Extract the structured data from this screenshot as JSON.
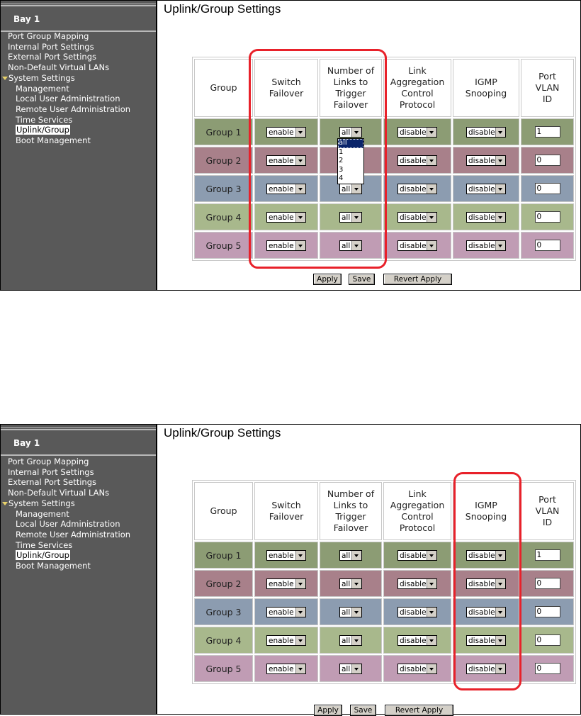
{
  "screens": [
    {
      "bay_title": "Bay 1",
      "nav": [
        {
          "label": "Port Group Mapping"
        },
        {
          "label": "Internal Port Settings"
        },
        {
          "label": "External Port Settings"
        },
        {
          "label": "Non-Default Virtual LANs"
        },
        {
          "label": "System Settings"
        },
        {
          "label": "Management"
        },
        {
          "label": "Local User Administration"
        },
        {
          "label": "Remote User Administration"
        },
        {
          "label": "Time Services"
        },
        {
          "label": "Uplink/Group"
        },
        {
          "label": "Boot Management"
        }
      ],
      "page_title": "Uplink/Group Settings",
      "headers": [
        "Group",
        "Switch Failover",
        "Number of Links to Trigger Failover",
        "Link Aggregation Control Protocol",
        "IGMP Snooping",
        "Port VLAN ID"
      ],
      "rows": [
        {
          "group": "Group 1",
          "switch_failover": "enable",
          "num_links": "all",
          "lacp": "disable",
          "igmp": "disable",
          "pvid": "1",
          "color": "#8c9c74"
        },
        {
          "group": "Group 2",
          "switch_failover": "enable",
          "num_links": "all",
          "lacp": "disable",
          "igmp": "disable",
          "pvid": "0",
          "color": "#a8808a"
        },
        {
          "group": "Group 3",
          "switch_failover": "enable",
          "num_links": "all",
          "lacp": "disable",
          "igmp": "disable",
          "pvid": "0",
          "color": "#8c9cb0"
        },
        {
          "group": "Group 4",
          "switch_failover": "enable",
          "num_links": "all",
          "lacp": "disable",
          "igmp": "disable",
          "pvid": "0",
          "color": "#a8b88c"
        },
        {
          "group": "Group 5",
          "switch_failover": "enable",
          "num_links": "all",
          "lacp": "disable",
          "igmp": "disable",
          "pvid": "0",
          "color": "#c09cb4"
        }
      ],
      "dropdown_options": [
        "all",
        "1",
        "2",
        "3",
        "4"
      ],
      "buttons": {
        "apply": "Apply",
        "save": "Save",
        "revert": "Revert Apply"
      }
    },
    {
      "bay_title": "Bay 1",
      "nav": [
        {
          "label": "Port Group Mapping"
        },
        {
          "label": "Internal Port Settings"
        },
        {
          "label": "External Port Settings"
        },
        {
          "label": "Non-Default Virtual LANs"
        },
        {
          "label": "System Settings"
        },
        {
          "label": "Management"
        },
        {
          "label": "Local User Administration"
        },
        {
          "label": "Remote User Administration"
        },
        {
          "label": "Time Services"
        },
        {
          "label": "Uplink/Group"
        },
        {
          "label": "Boot Management"
        }
      ],
      "page_title": "Uplink/Group Settings",
      "headers": [
        "Group",
        "Switch Failover",
        "Number of Links to Trigger Failover",
        "Link Aggregation Control Protocol",
        "IGMP Snooping",
        "Port VLAN ID"
      ],
      "rows": [
        {
          "group": "Group 1",
          "switch_failover": "enable",
          "num_links": "all",
          "lacp": "disable",
          "igmp": "disable",
          "pvid": "1",
          "color": "#8c9c74"
        },
        {
          "group": "Group 2",
          "switch_failover": "enable",
          "num_links": "all",
          "lacp": "disable",
          "igmp": "disable",
          "pvid": "0",
          "color": "#a8808a"
        },
        {
          "group": "Group 3",
          "switch_failover": "enable",
          "num_links": "all",
          "lacp": "disable",
          "igmp": "disable",
          "pvid": "0",
          "color": "#8c9cb0"
        },
        {
          "group": "Group 4",
          "switch_failover": "enable",
          "num_links": "all",
          "lacp": "disable",
          "igmp": "disable",
          "pvid": "0",
          "color": "#a8b88c"
        },
        {
          "group": "Group 5",
          "switch_failover": "enable",
          "num_links": "all",
          "lacp": "disable",
          "igmp": "disable",
          "pvid": "0",
          "color": "#c09cb4"
        }
      ],
      "buttons": {
        "apply": "Apply",
        "save": "Save",
        "revert": "Revert Apply"
      }
    }
  ],
  "colors": {
    "sidebar": "#595959",
    "highlight": "#e8212a",
    "selected_option": "#0a246a"
  }
}
